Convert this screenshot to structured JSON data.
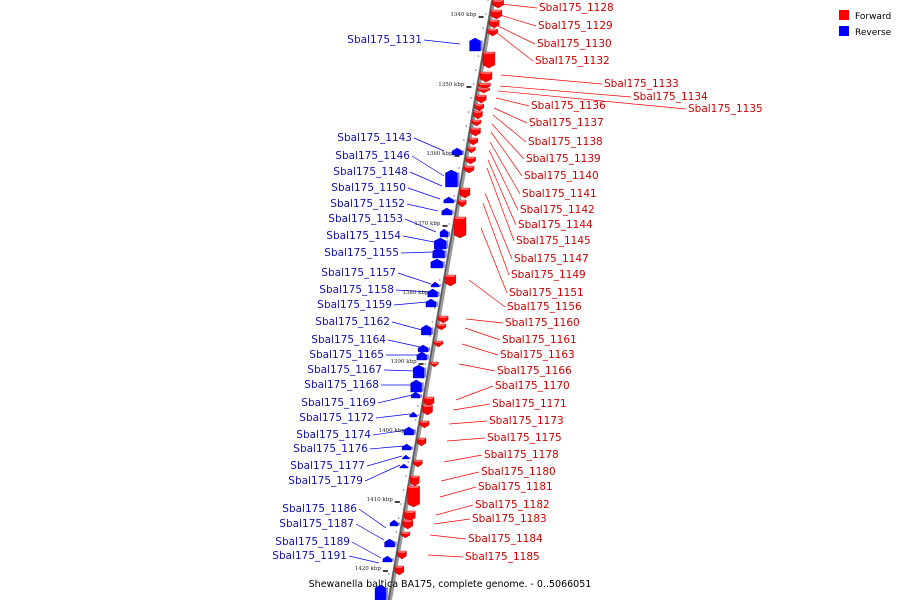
{
  "caption": "Shewanella baltica BA175, complete genome. - 0..5066051",
  "legend": [
    {
      "label": "Forward",
      "color": "#ff0000"
    },
    {
      "label": "Reverse",
      "color": "#0000ff"
    }
  ],
  "colors": {
    "forward": "#ff0000",
    "reverse": "#0000ff",
    "forward_label": "#cc0000",
    "reverse_label": "#1111aa",
    "backbone": "#777777"
  },
  "ticks": [
    "1340 kbp",
    "1350 kbp",
    "1360 kbp",
    "1370 kbp",
    "1380 kbp",
    "1390 kbp",
    "1400 kbp",
    "1410 kbp",
    "1420 kbp"
  ],
  "forward_genes": [
    "Sbal175_1128",
    "Sbal175_1129",
    "Sbal175_1130",
    "Sbal175_1132",
    "Sbal175_1133",
    "Sbal175_1134",
    "Sbal175_1135",
    "Sbal175_1136",
    "Sbal175_1137",
    "Sbal175_1138",
    "Sbal175_1139",
    "Sbal175_1140",
    "Sbal175_1141",
    "Sbal175_1142",
    "Sbal175_1144",
    "Sbal175_1145",
    "Sbal175_1147",
    "Sbal175_1149",
    "Sbal175_1151",
    "Sbal175_1156",
    "Sbal175_1160",
    "Sbal175_1161",
    "Sbal175_1163",
    "Sbal175_1166",
    "Sbal175_1170",
    "Sbal175_1171",
    "Sbal175_1173",
    "Sbal175_1175",
    "Sbal175_1178",
    "Sbal175_1180",
    "Sbal175_1181",
    "Sbal175_1182",
    "Sbal175_1183",
    "Sbal175_1184",
    "Sbal175_1185"
  ],
  "reverse_genes": [
    "Sbal175_1131",
    "Sbal175_1143",
    "Sbal175_1146",
    "Sbal175_1148",
    "Sbal175_1150",
    "Sbal175_1152",
    "Sbal175_1153",
    "Sbal175_1154",
    "Sbal175_1155",
    "Sbal175_1157",
    "Sbal175_1158",
    "Sbal175_1159",
    "Sbal175_1162",
    "Sbal175_1164",
    "Sbal175_1165",
    "Sbal175_1167",
    "Sbal175_1168",
    "Sbal175_1169",
    "Sbal175_1172",
    "Sbal175_1174",
    "Sbal175_1176",
    "Sbal175_1177",
    "Sbal175_1179",
    "Sbal175_1186",
    "Sbal175_1187",
    "Sbal175_1189",
    "Sbal175_1191"
  ]
}
